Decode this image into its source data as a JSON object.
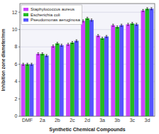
{
  "chart_data": {
    "type": "bar",
    "xlabel": "Synthetic Chemical Compounds",
    "ylabel": "Inhibition zone diameter/mm",
    "categories": [
      "DMF",
      "2a",
      "2b",
      "2c",
      "2d",
      "3a",
      "3b",
      "3c",
      "3d"
    ],
    "series": [
      {
        "name": "Staphylococcus aureus",
        "color": "#cc44ff",
        "values": [
          6.0,
          7.2,
          8.1,
          8.3,
          11.0,
          9.3,
          10.5,
          10.6,
          12.2
        ],
        "errors": [
          0.12,
          0.12,
          0.12,
          0.12,
          0.12,
          0.12,
          0.12,
          0.12,
          0.12
        ]
      },
      {
        "name": "Escherichia coli",
        "color": "#22bb22",
        "values": [
          6.0,
          7.2,
          8.4,
          8.5,
          11.3,
          9.0,
          10.3,
          10.7,
          12.4
        ],
        "errors": [
          0.12,
          0.12,
          0.12,
          0.12,
          0.12,
          0.12,
          0.12,
          0.12,
          0.12
        ]
      },
      {
        "name": "Pseudomonas aeruginosa",
        "color": "#5555ff",
        "values": [
          6.0,
          7.0,
          8.2,
          8.7,
          11.1,
          9.2,
          10.5,
          10.6,
          12.4
        ],
        "errors": [
          0.12,
          0.12,
          0.12,
          0.12,
          0.12,
          0.12,
          0.12,
          0.12,
          0.12
        ]
      }
    ],
    "ylim": [
      0,
      13
    ],
    "yticks": [
      0,
      2,
      4,
      6,
      8,
      10,
      12
    ],
    "grid": true,
    "legend": "upper left"
  }
}
